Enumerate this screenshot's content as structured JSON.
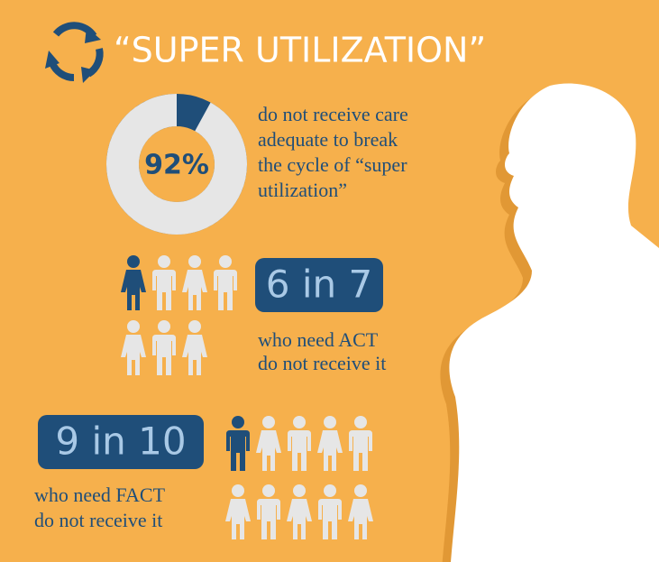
{
  "header": {
    "title": "“SUPER UTILIZATION”"
  },
  "donut": {
    "value": 92,
    "label": "92%",
    "text": [
      "do not receive care",
      "adequate to break",
      "the cycle of “super",
      "utilization”"
    ]
  },
  "act": {
    "ratio": "6 in 7",
    "text": [
      "who need ACT",
      "do not receive it"
    ]
  },
  "fact": {
    "ratio": "9 in 10",
    "text": [
      "who need FACT",
      "do not receive it"
    ]
  }
}
